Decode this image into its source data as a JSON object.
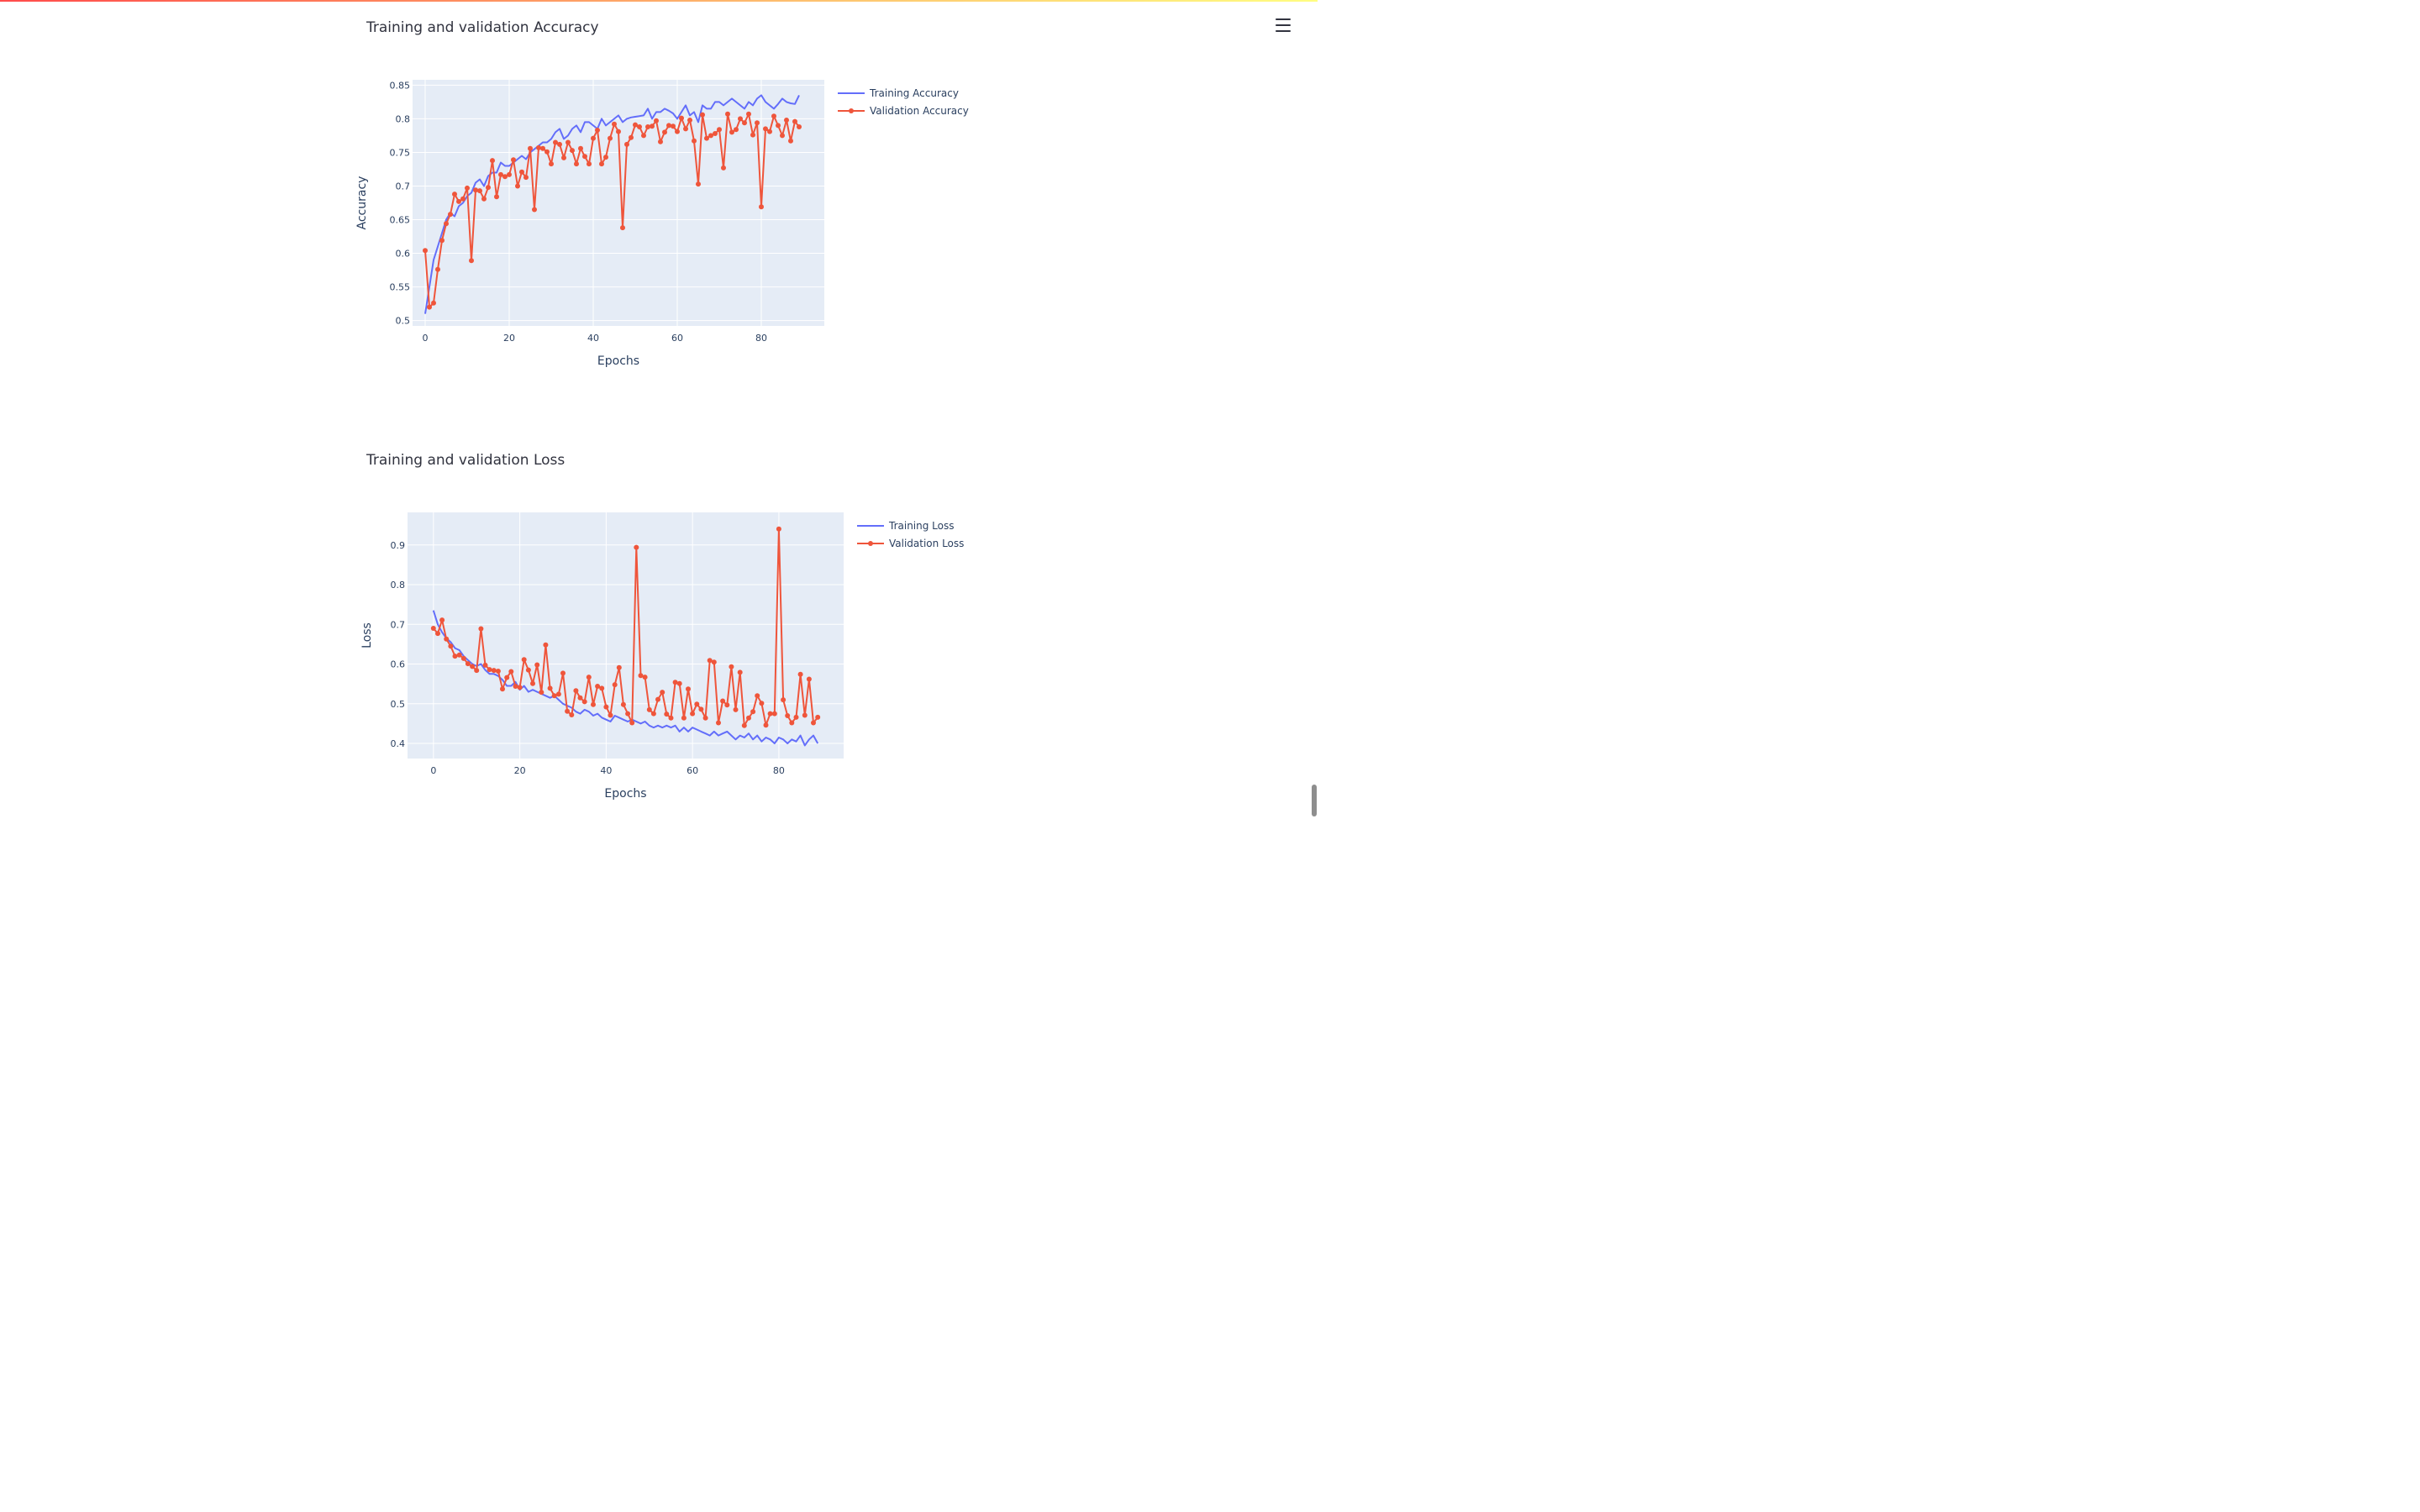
{
  "page": {
    "icons": {
      "menu": "hamburger-menu-icon"
    }
  },
  "chart_data": [
    {
      "type": "line",
      "title": "Training and validation Accuracy",
      "xlabel": "Epochs",
      "ylabel": "Accuracy",
      "xlim": [
        -3,
        95
      ],
      "ylim": [
        0.492,
        0.858
      ],
      "x_ticks": [
        "0",
        "20",
        "40",
        "60",
        "80"
      ],
      "y_ticks": [
        "0.5",
        "0.55",
        "0.6",
        "0.65",
        "0.7",
        "0.75",
        "0.8",
        "0.85"
      ],
      "grid": true,
      "legend_position": "top-right",
      "colors": {
        "Training Accuracy": "#636efa",
        "Validation Accuracy": "#ef553b",
        "plot_bg": "#e5ecf6"
      },
      "series": [
        {
          "name": "Training Accuracy",
          "mode": "lines",
          "values": [
            0.51,
            0.55,
            0.59,
            0.61,
            0.63,
            0.65,
            0.66,
            0.655,
            0.67,
            0.675,
            0.685,
            0.69,
            0.705,
            0.71,
            0.7,
            0.715,
            0.72,
            0.72,
            0.735,
            0.73,
            0.73,
            0.735,
            0.74,
            0.745,
            0.74,
            0.75,
            0.755,
            0.76,
            0.765,
            0.765,
            0.77,
            0.78,
            0.785,
            0.77,
            0.775,
            0.785,
            0.79,
            0.78,
            0.795,
            0.795,
            0.79,
            0.785,
            0.8,
            0.79,
            0.795,
            0.8,
            0.805,
            0.795,
            0.8,
            0.802,
            0.803,
            0.804,
            0.805,
            0.815,
            0.8,
            0.81,
            0.81,
            0.815,
            0.812,
            0.808,
            0.8,
            0.81,
            0.82,
            0.805,
            0.81,
            0.795,
            0.82,
            0.815,
            0.815,
            0.825,
            0.825,
            0.82,
            0.825,
            0.83,
            0.825,
            0.82,
            0.815,
            0.825,
            0.82,
            0.83,
            0.835,
            0.825,
            0.82,
            0.815,
            0.822,
            0.83,
            0.825,
            0.823,
            0.822,
            0.835
          ]
        },
        {
          "name": "Validation Accuracy",
          "mode": "lines+markers",
          "values": [
            0.604,
            0.52,
            0.526,
            0.576,
            0.619,
            0.644,
            0.658,
            0.688,
            0.677,
            0.681,
            0.697,
            0.589,
            0.694,
            0.693,
            0.681,
            0.698,
            0.738,
            0.684,
            0.717,
            0.714,
            0.717,
            0.739,
            0.7,
            0.721,
            0.713,
            0.756,
            0.665,
            0.757,
            0.756,
            0.751,
            0.733,
            0.765,
            0.762,
            0.742,
            0.765,
            0.753,
            0.733,
            0.756,
            0.744,
            0.733,
            0.771,
            0.783,
            0.733,
            0.743,
            0.771,
            0.792,
            0.781,
            0.638,
            0.762,
            0.772,
            0.791,
            0.788,
            0.775,
            0.788,
            0.789,
            0.797,
            0.766,
            0.78,
            0.79,
            0.789,
            0.781,
            0.801,
            0.785,
            0.798,
            0.767,
            0.703,
            0.806,
            0.771,
            0.775,
            0.778,
            0.784,
            0.727,
            0.807,
            0.78,
            0.784,
            0.8,
            0.794,
            0.807,
            0.776,
            0.794,
            0.669,
            0.785,
            0.781,
            0.804,
            0.79,
            0.775,
            0.798,
            0.767,
            0.796,
            0.788
          ]
        }
      ]
    },
    {
      "type": "line",
      "title": "Training and validation Loss",
      "xlabel": "Epochs",
      "ylabel": "Loss",
      "xlim": [
        -6,
        95
      ],
      "ylim": [
        0.362,
        0.982
      ],
      "x_ticks": [
        "0",
        "20",
        "40",
        "60",
        "80"
      ],
      "y_ticks": [
        "0.4",
        "0.5",
        "0.6",
        "0.7",
        "0.8",
        "0.9"
      ],
      "grid": true,
      "legend_position": "top-right",
      "colors": {
        "Training Loss": "#636efa",
        "Validation Loss": "#ef553b",
        "plot_bg": "#e5ecf6"
      },
      "series": [
        {
          "name": "Training Loss",
          "mode": "lines",
          "values": [
            0.735,
            0.7,
            0.68,
            0.665,
            0.655,
            0.64,
            0.635,
            0.62,
            0.61,
            0.6,
            0.595,
            0.6,
            0.585,
            0.575,
            0.575,
            0.57,
            0.56,
            0.545,
            0.545,
            0.555,
            0.535,
            0.545,
            0.53,
            0.535,
            0.53,
            0.525,
            0.52,
            0.515,
            0.52,
            0.51,
            0.5,
            0.495,
            0.49,
            0.48,
            0.475,
            0.485,
            0.48,
            0.47,
            0.475,
            0.465,
            0.46,
            0.455,
            0.47,
            0.465,
            0.46,
            0.455,
            0.46,
            0.455,
            0.45,
            0.455,
            0.445,
            0.44,
            0.445,
            0.44,
            0.445,
            0.44,
            0.445,
            0.43,
            0.44,
            0.43,
            0.44,
            0.435,
            0.43,
            0.425,
            0.42,
            0.43,
            0.42,
            0.425,
            0.43,
            0.42,
            0.41,
            0.42,
            0.415,
            0.425,
            0.41,
            0.42,
            0.405,
            0.415,
            0.41,
            0.4,
            0.415,
            0.41,
            0.4,
            0.41,
            0.405,
            0.42,
            0.395,
            0.41,
            0.42,
            0.4
          ]
        },
        {
          "name": "Validation Loss",
          "mode": "lines+markers",
          "values": [
            0.69,
            0.677,
            0.711,
            0.663,
            0.645,
            0.62,
            0.623,
            0.614,
            0.601,
            0.594,
            0.584,
            0.689,
            0.597,
            0.586,
            0.584,
            0.582,
            0.537,
            0.566,
            0.581,
            0.544,
            0.541,
            0.611,
            0.585,
            0.551,
            0.598,
            0.529,
            0.648,
            0.539,
            0.52,
            0.524,
            0.577,
            0.481,
            0.472,
            0.533,
            0.515,
            0.505,
            0.567,
            0.498,
            0.544,
            0.539,
            0.492,
            0.471,
            0.548,
            0.591,
            0.498,
            0.475,
            0.452,
            0.894,
            0.571,
            0.567,
            0.485,
            0.475,
            0.511,
            0.529,
            0.474,
            0.464,
            0.554,
            0.551,
            0.464,
            0.537,
            0.475,
            0.499,
            0.486,
            0.464,
            0.609,
            0.605,
            0.452,
            0.507,
            0.497,
            0.593,
            0.485,
            0.579,
            0.445,
            0.464,
            0.48,
            0.52,
            0.501,
            0.446,
            0.475,
            0.475,
            0.94,
            0.51,
            0.47,
            0.452,
            0.466,
            0.574,
            0.471,
            0.562,
            0.452,
            0.466
          ]
        }
      ]
    }
  ]
}
